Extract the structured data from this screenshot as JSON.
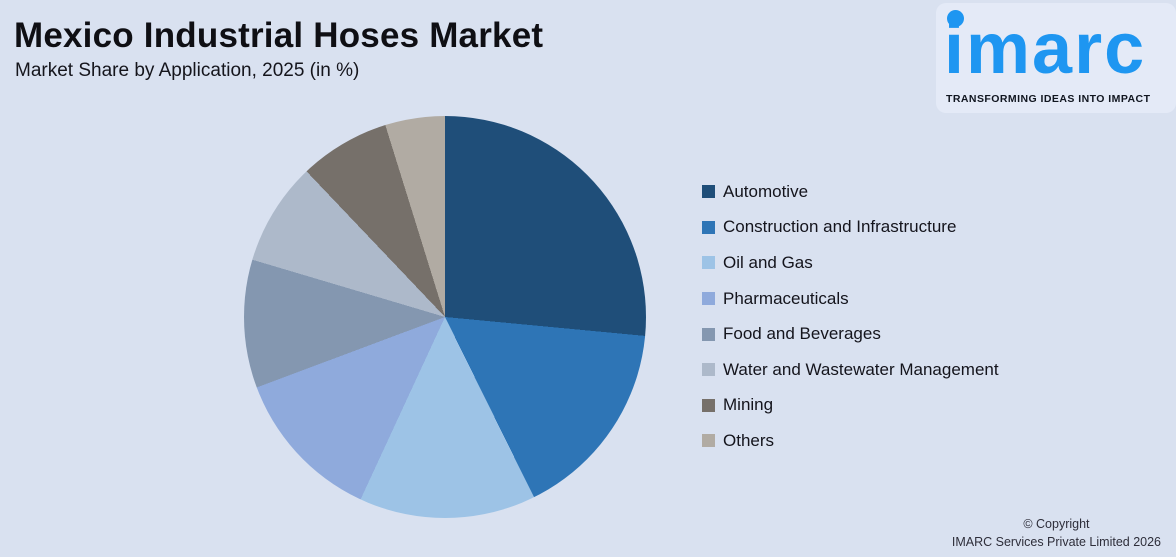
{
  "header": {
    "title": "Mexico Industrial Hoses Market",
    "subtitle": "Market Share by Application, 2025 (in %)"
  },
  "logo": {
    "wordmark": "imarc",
    "tagline": "TRANSFORMING IDEAS INTO IMPACT",
    "brand_color": "#1E96F1"
  },
  "footer": {
    "copyright_line1": "© Copyright",
    "copyright_line2": "IMARC Services Private Limited 2026"
  },
  "background_color": "#D9E1F0",
  "chart_data": {
    "type": "pie",
    "title": "Mexico Industrial Hoses Market",
    "subtitle": "Market Share by Application, 2025 (in %)",
    "unit": "%",
    "start_angle_deg": 0,
    "direction": "clockwise",
    "legend_position": "right",
    "data_labels_shown": false,
    "values_estimated_from_angles": true,
    "categories": [
      "Automotive",
      "Construction and Infrastructure",
      "Oil and Gas",
      "Pharmaceuticals",
      "Food and Beverages",
      "Water and Wastewater Management",
      "Mining",
      "Others"
    ],
    "values": [
      26.5,
      16.2,
      14.2,
      12.4,
      10.3,
      8.3,
      7.3,
      4.8
    ],
    "colors": [
      "#1F4E79",
      "#2E75B6",
      "#9DC3E6",
      "#8FAADC",
      "#8497B0",
      "#ADB9CA",
      "#76706A",
      "#B1ABA3"
    ]
  }
}
